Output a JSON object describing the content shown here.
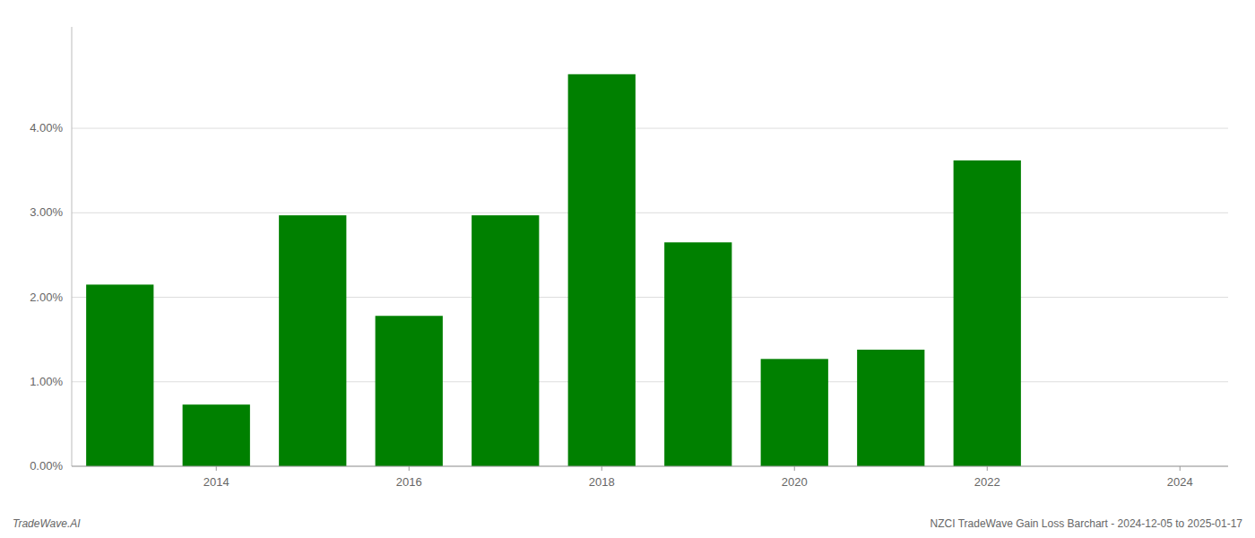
{
  "chart_data": {
    "type": "bar",
    "x": [
      2013,
      2014,
      2015,
      2016,
      2017,
      2018,
      2019,
      2020,
      2021,
      2022,
      2023
    ],
    "values": [
      0.0215,
      0.0073,
      0.0297,
      0.0178,
      0.0297,
      0.0464,
      0.0265,
      0.0127,
      0.0138,
      0.0362,
      0.0
    ],
    "color": "#008000",
    "xlim": [
      2012.5,
      2024.5
    ],
    "xticks": [
      2014,
      2016,
      2018,
      2020,
      2022,
      2024
    ],
    "ylim": [
      0,
      0.052
    ],
    "yticks": [
      {
        "value": 0.0,
        "label": "0.00%"
      },
      {
        "value": 0.01,
        "label": "1.00%"
      },
      {
        "value": 0.02,
        "label": "2.00%"
      },
      {
        "value": 0.03,
        "label": "3.00%"
      },
      {
        "value": 0.04,
        "label": "4.00%"
      }
    ],
    "grid": true,
    "annotations": [
      "TradeWave.AI",
      "NZCI TradeWave Gain Loss Barchart - 2024-12-05 to 2025-01-17"
    ]
  }
}
